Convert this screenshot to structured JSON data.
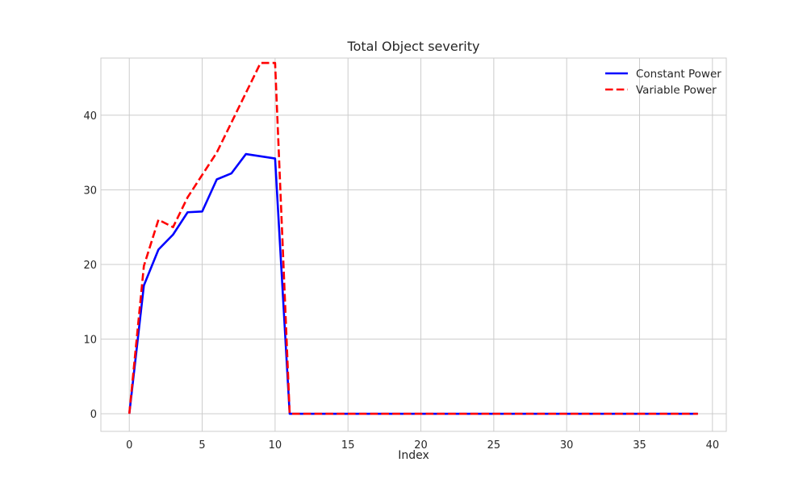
{
  "chart_data": {
    "type": "line",
    "title": "Total Object severity",
    "xlabel": "Index",
    "ylabel": "",
    "xlim": [
      -1.95,
      40.95
    ],
    "ylim": [
      -2.36,
      47.66
    ],
    "xticks": [
      0,
      5,
      10,
      15,
      20,
      25,
      30,
      35,
      40
    ],
    "yticks": [
      0,
      10,
      20,
      30,
      40
    ],
    "grid": true,
    "legend_position": "top-right",
    "x": [
      0,
      1,
      2,
      3,
      4,
      5,
      6,
      7,
      8,
      9,
      10,
      11,
      12,
      13,
      14,
      15,
      16,
      17,
      18,
      19,
      20,
      21,
      22,
      23,
      24,
      25,
      26,
      27,
      28,
      29,
      30,
      31,
      32,
      33,
      34,
      35,
      36,
      37,
      38,
      39
    ],
    "series": [
      {
        "name": "Constant Power",
        "color": "#0000ff",
        "style": "solid",
        "values": [
          0,
          17.2,
          22.0,
          24.0,
          27.0,
          27.1,
          31.4,
          32.2,
          34.8,
          34.5,
          34.2,
          0,
          0,
          0,
          0,
          0,
          0,
          0,
          0,
          0,
          0,
          0,
          0,
          0,
          0,
          0,
          0,
          0,
          0,
          0,
          0,
          0,
          0,
          0,
          0,
          0,
          0,
          0,
          0,
          0
        ]
      },
      {
        "name": "Variable Power",
        "color": "#ff0000",
        "style": "dashed",
        "values": [
          0,
          19.8,
          26.0,
          25.0,
          29.0,
          32.0,
          35.0,
          39.0,
          43.0,
          47.0,
          47.0,
          0,
          0,
          0,
          0,
          0,
          0,
          0,
          0,
          0,
          0,
          0,
          0,
          0,
          0,
          0,
          0,
          0,
          0,
          0,
          0,
          0,
          0,
          0,
          0,
          0,
          0,
          0,
          0,
          0
        ]
      }
    ]
  }
}
